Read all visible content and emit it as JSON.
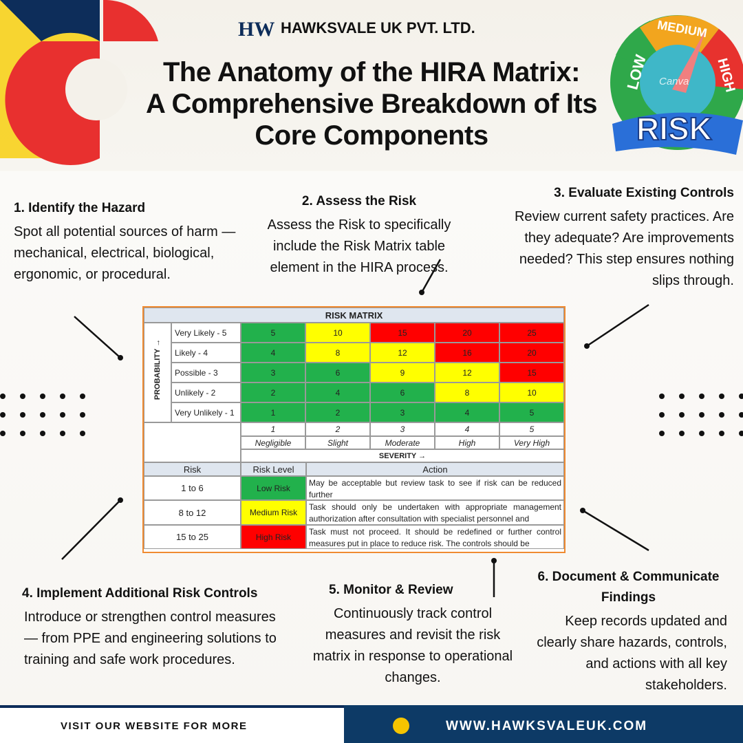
{
  "header": {
    "company": "HAWKSVALE UK PVT. LTD.",
    "title": [
      "The Anatomy of the HIRA Matrix:",
      "A Comprehensive Breakdown of Its",
      "Core Components"
    ]
  },
  "badge": {
    "labels": [
      "LOW",
      "MEDIUM",
      "HIGH"
    ],
    "word": "RISK",
    "watermark": "Canva"
  },
  "sections": [
    {
      "title": "1. Identify the Hazard",
      "text": "Spot all potential sources of harm — mechanical, electrical, biological, ergonomic, or procedural."
    },
    {
      "title": "2. Assess the Risk",
      "text": "Assess the Risk to specifically include the Risk Matrix table element in the HIRA process."
    },
    {
      "title": "3. Evaluate Existing Controls",
      "text": "Review current safety practices. Are they adequate? Are improvements needed? This step ensures nothing slips through."
    },
    {
      "title": "4. Implement Additional Risk Controls",
      "text": "Introduce or strengthen control measures — from PPE and engineering solutions to training and safe work procedures."
    },
    {
      "title": "5. Monitor & Review",
      "text": "Continuously track control measures and revisit the risk matrix in response to operational changes."
    },
    {
      "title": "6. Document & Communicate Findings",
      "text": "Keep records updated and clearly share hazards, controls, and actions with all key stakeholders."
    }
  ],
  "matrix": {
    "title": "RISK MATRIX",
    "probability_label": "PROBABILITY →",
    "severity_label": "SEVERITY →",
    "rows": [
      {
        "label": "Very Likely - 5",
        "cells": [
          5,
          10,
          15,
          20,
          25
        ],
        "colors": [
          "#22b14c",
          "#ffff00",
          "#ff0000",
          "#ff0000",
          "#ff0000"
        ]
      },
      {
        "label": "Likely - 4",
        "cells": [
          4,
          8,
          12,
          16,
          20
        ],
        "colors": [
          "#22b14c",
          "#ffff00",
          "#ffff00",
          "#ff0000",
          "#ff0000"
        ]
      },
      {
        "label": "Possible - 3",
        "cells": [
          3,
          6,
          9,
          12,
          15
        ],
        "colors": [
          "#22b14c",
          "#22b14c",
          "#ffff00",
          "#ffff00",
          "#ff0000"
        ]
      },
      {
        "label": "Unlikely - 2",
        "cells": [
          2,
          4,
          6,
          8,
          10
        ],
        "colors": [
          "#22b14c",
          "#22b14c",
          "#22b14c",
          "#ffff00",
          "#ffff00"
        ]
      },
      {
        "label": "Very Unlikely - 1",
        "cells": [
          1,
          2,
          3,
          4,
          5
        ],
        "colors": [
          "#22b14c",
          "#22b14c",
          "#22b14c",
          "#22b14c",
          "#22b14c"
        ]
      }
    ],
    "severity": [
      {
        "number": 1,
        "name": "Negligible"
      },
      {
        "number": 2,
        "name": "Slight"
      },
      {
        "number": 3,
        "name": "Moderate"
      },
      {
        "number": 4,
        "name": "High"
      },
      {
        "number": 5,
        "name": "Very High"
      }
    ],
    "legend_headers": [
      "Risk",
      "Risk Level",
      "Action"
    ],
    "legend": [
      {
        "range": "1 to 6",
        "level": "Low Risk",
        "color": "#22b14c",
        "action": "May be acceptable but review task to see if risk can be reduced further"
      },
      {
        "range": "8 to 12",
        "level": "Medium Risk",
        "color": "#ffff00",
        "action": "Task should only be undertaken with appropriate management authorization after consultation with specialist personnel and"
      },
      {
        "range": "15 to 25",
        "level": "High Risk",
        "color": "#ff0000",
        "action": "Task must not proceed. It should be redefined or further control measures put in place to reduce risk. The controls should be"
      }
    ]
  },
  "footer": {
    "left": "VISIT OUR WEBSITE FOR MORE",
    "right": "WWW.HAWKSVALEUK.COM"
  }
}
